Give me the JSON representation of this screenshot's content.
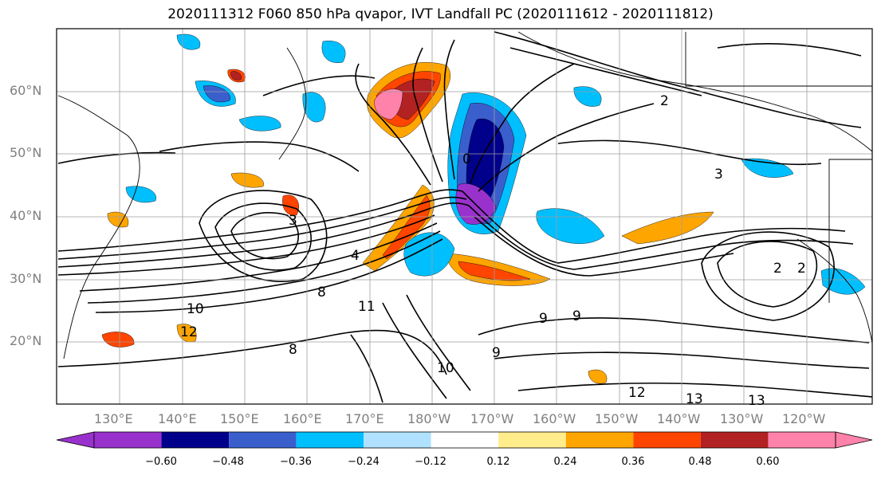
{
  "title": "2020111312 F060 850 hPa qvapor, IVT Landfall PC (2020111612 - 2020111812)",
  "lat_labels": [
    "60°N",
    "50°N",
    "40°N",
    "30°N",
    "20°N"
  ],
  "lon_labels": [
    "130°E",
    "140°E",
    "150°E",
    "160°E",
    "170°E",
    "180°W",
    "170°W",
    "160°W",
    "150°W",
    "140°W",
    "130°W",
    "120°W"
  ],
  "contour_labels": [
    "0",
    "2",
    "3",
    "3",
    "4",
    "8",
    "9",
    "9",
    "10",
    "10",
    "11",
    "12",
    "12",
    "13",
    "13",
    "2",
    "2",
    "9",
    "8"
  ],
  "colorbar": {
    "ticks": [
      "−0.60",
      "−0.48",
      "−0.36",
      "−0.24",
      "−0.12",
      "0.12",
      "0.24",
      "0.36",
      "0.48",
      "0.60"
    ],
    "colors": [
      "#9932cc",
      "#00008b",
      "#3a5fcd",
      "#00bfff",
      "#b0e2ff",
      "#ffffff",
      "#ffec8b",
      "#ffa500",
      "#ff4500",
      "#b22222",
      "#ff82ab"
    ],
    "extend": "both"
  }
}
